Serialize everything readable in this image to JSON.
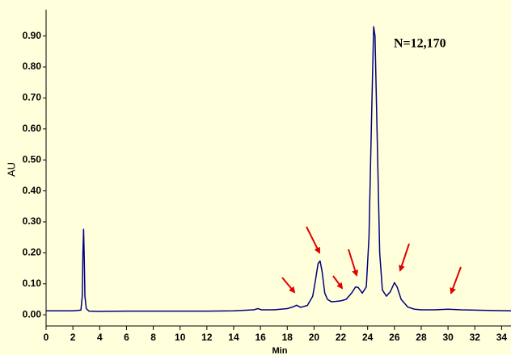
{
  "chart_data": {
    "type": "line",
    "annotation": "N=12,170",
    "x_label": "Min",
    "y_label": "AU",
    "x": [
      0,
      1,
      2,
      2.6,
      2.7,
      2.75,
      2.8,
      2.85,
      2.9,
      3.0,
      3.2,
      4,
      6,
      8,
      10,
      12,
      14,
      15.5,
      15.8,
      16.1,
      17,
      18,
      18.4,
      18.7,
      19,
      19.5,
      19.9,
      20.1,
      20.3,
      20.45,
      20.6,
      20.8,
      21,
      21.3,
      21.6,
      22,
      22.4,
      22.8,
      23.1,
      23.3,
      23.6,
      23.9,
      24.1,
      24.3,
      24.45,
      24.55,
      24.7,
      24.9,
      25.1,
      25.4,
      25.7,
      26,
      26.2,
      26.5,
      27,
      27.5,
      28,
      29,
      30,
      31,
      32,
      33,
      34.7
    ],
    "values": [
      0.013,
      0.013,
      0.013,
      0.015,
      0.06,
      0.2,
      0.276,
      0.18,
      0.06,
      0.02,
      0.012,
      0.011,
      0.012,
      0.012,
      0.012,
      0.012,
      0.013,
      0.016,
      0.02,
      0.016,
      0.016,
      0.02,
      0.025,
      0.031,
      0.024,
      0.03,
      0.06,
      0.11,
      0.165,
      0.174,
      0.14,
      0.07,
      0.05,
      0.042,
      0.043,
      0.045,
      0.05,
      0.07,
      0.09,
      0.088,
      0.07,
      0.09,
      0.25,
      0.65,
      0.93,
      0.9,
      0.6,
      0.2,
      0.08,
      0.06,
      0.075,
      0.104,
      0.09,
      0.05,
      0.025,
      0.018,
      0.016,
      0.016,
      0.018,
      0.016,
      0.015,
      0.014,
      0.013
    ],
    "color": "#000080",
    "xlim": [
      0,
      34.7
    ],
    "ylim": [
      -0.036,
      0.985
    ],
    "xticks": [
      0,
      2,
      4,
      6,
      8,
      10,
      12,
      14,
      16,
      18,
      20,
      22,
      24,
      26,
      28,
      30,
      32,
      34
    ],
    "yticks": [
      {
        "value": 0,
        "label": "0.00"
      },
      {
        "value": 0.1,
        "label": "0.10"
      },
      {
        "value": 0.2,
        "label": "0.20"
      },
      {
        "value": 0.3,
        "label": "0.30"
      },
      {
        "value": 0.4,
        "label": "0.40"
      },
      {
        "value": 0.5,
        "label": "0.50"
      },
      {
        "value": 0.6,
        "label": "0.60"
      },
      {
        "value": 0.7,
        "label": "0.70"
      },
      {
        "value": 0.8,
        "label": "0.80"
      },
      {
        "value": 0.9,
        "label": "0.90"
      }
    ],
    "grid": false
  }
}
